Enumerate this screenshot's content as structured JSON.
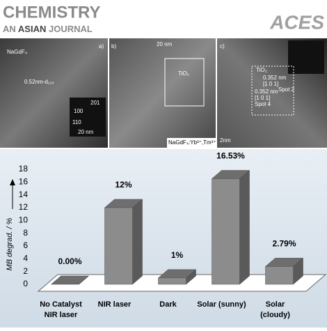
{
  "header": {
    "title": "CHEMISTRY",
    "subtitle_prefix": "AN",
    "subtitle_bold": "ASIAN",
    "subtitle_suffix": "JOURNAL",
    "logo": "ACES"
  },
  "panels": [
    {
      "label": "a)",
      "texts": [
        "NaGdF₄",
        "0.52nm-d₁₁₀",
        "201",
        "100",
        "110",
        "20 nm"
      ]
    },
    {
      "label": "b)",
      "texts": [
        "20 nm",
        "TiO₂",
        "NaGdF₄:Yb³⁺,Tm³⁺"
      ]
    },
    {
      "label": "c)",
      "texts": [
        "TiO₂",
        "0.352 nm",
        "[1 0 1]",
        "0.352 nm",
        "[1 0 1]",
        "Spot 4",
        "Spot 2",
        "2nm"
      ]
    }
  ],
  "chart_data": {
    "type": "bar3d",
    "ylabel": "MB degrad. / %",
    "categories": [
      [
        "No Catalyst",
        "NIR laser"
      ],
      [
        "NIR laser"
      ],
      [
        "Dark"
      ],
      [
        "Solar (sunny)"
      ],
      [
        "Solar",
        "(cloudy)"
      ]
    ],
    "values": [
      0,
      12,
      1,
      16.53,
      2.79
    ],
    "value_labels": [
      "0.00%",
      "12%",
      "1%",
      "16.53%",
      "2.79%"
    ],
    "color": "#8c8c8c",
    "ylim": [
      0,
      18
    ],
    "yticks": [
      0,
      2,
      4,
      6,
      8,
      10,
      12,
      14,
      16,
      18
    ],
    "grid": false
  }
}
